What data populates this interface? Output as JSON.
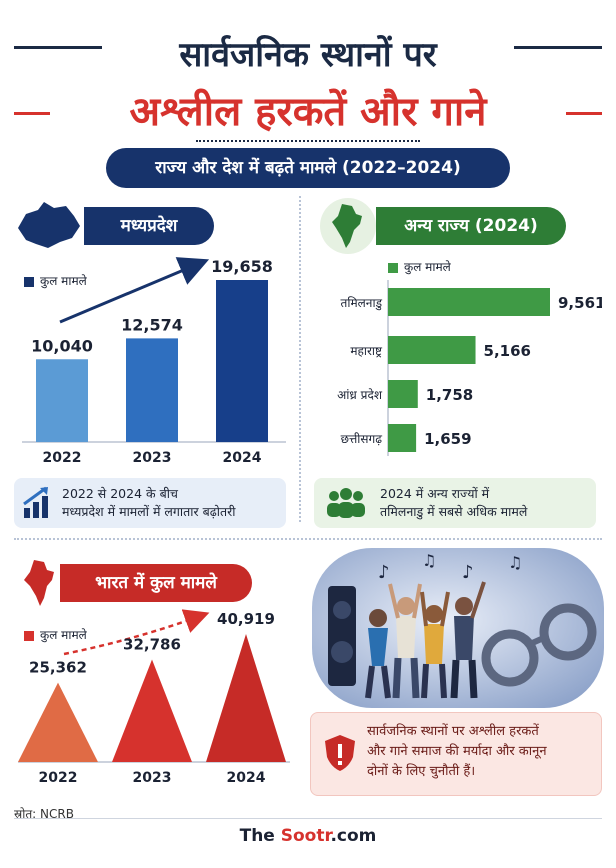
{
  "header": {
    "title_line1": "सार्वजनिक स्थानों पर",
    "title_line2": "अश्लील हरकतें और गाने",
    "subtitle": "राज्य और देश में बढ़ते मामले (2022–2024)"
  },
  "sections": {
    "mp_tab": "मध्यप्रदेश",
    "other_tab": "अन्य राज्य (2024)",
    "india_tab": "भारत में कुल मामले"
  },
  "legend_label": "कुल मामले",
  "colors": {
    "navy": "#17336b",
    "blue_light": "#5b9bd5",
    "blue_mid": "#2f6fbf",
    "blue_dark": "#173f8a",
    "green": "#3f9a45",
    "red": "#d6322d",
    "red_light": "#e06b45"
  },
  "notes": {
    "mp_line1": "2022 से 2024 के बीच",
    "mp_line2": "मध्यप्रदेश में मामलों में लगातार बढ़ोतरी",
    "other_line1": "2024 में अन्य राज्यों में",
    "other_line2": "तमिलनाडु में सबसे अधिक मामले",
    "india_line1": "सार्वजनिक स्थानों पर अश्लील हरकतें",
    "india_line2": "और गाने समाज की मर्यादा और कानून",
    "india_line3": "दोनों के लिए चुनौती हैं।"
  },
  "source": "स्रोत: NCRB",
  "brand": {
    "pre": "The ",
    "accent": "Sootr",
    "post": ".com"
  },
  "chart_data": [
    {
      "type": "bar",
      "title": "मध्यप्रदेश",
      "categories": [
        "2022",
        "2023",
        "2024"
      ],
      "series": [
        {
          "name": "कुल मामले",
          "values": [
            10040,
            12574,
            19658
          ]
        }
      ],
      "labels": [
        "10,040",
        "12,574",
        "19,658"
      ]
    },
    {
      "type": "bar",
      "orientation": "horizontal",
      "title": "अन्य राज्य (2024)",
      "categories": [
        "तमिलनाडु",
        "महाराष्ट्र",
        "आंध्र प्रदेश",
        "छत्तीसगढ़"
      ],
      "series": [
        {
          "name": "कुल मामले",
          "values": [
            9561,
            5166,
            1758,
            1659
          ]
        }
      ],
      "labels": [
        "9,561",
        "5,166",
        "1,758",
        "1,659"
      ]
    },
    {
      "type": "bar",
      "shape": "triangle",
      "title": "भारत में कुल मामले",
      "categories": [
        "2022",
        "2023",
        "2024"
      ],
      "series": [
        {
          "name": "कुल मामले",
          "values": [
            25362,
            32786,
            40919
          ]
        }
      ],
      "labels": [
        "25,362",
        "32,786",
        "40,919"
      ]
    }
  ]
}
